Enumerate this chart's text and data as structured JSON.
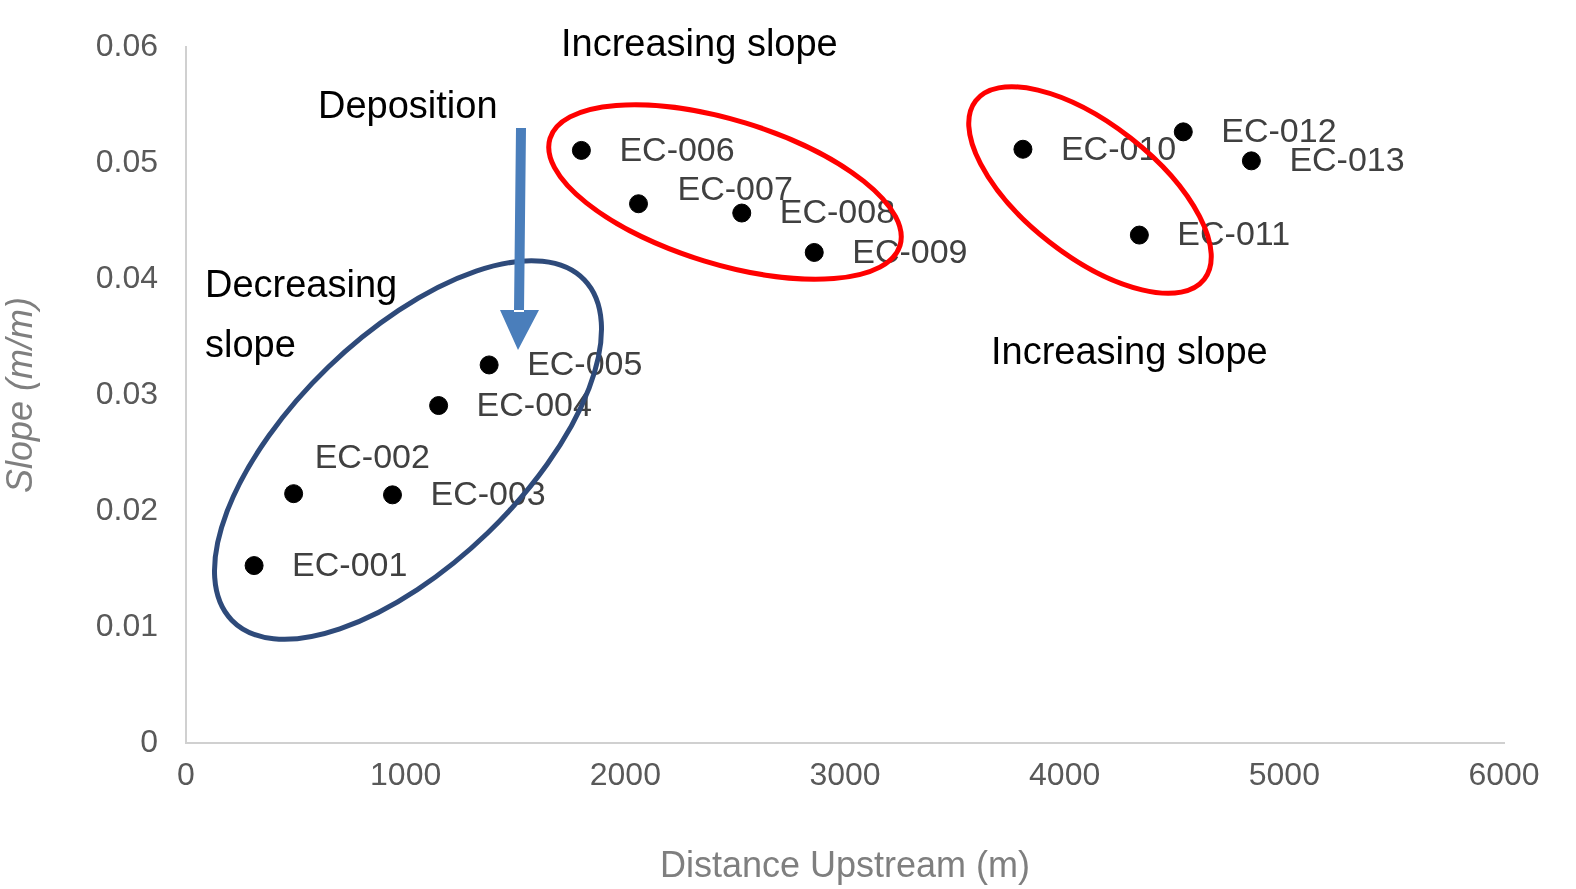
{
  "chart_data": {
    "type": "scatter",
    "xlabel": "Distance Upstream (m)",
    "ylabel": "Slope (m/m)",
    "x": [
      310,
      490,
      940,
      1150,
      1380,
      1800,
      2060,
      2530,
      2860,
      3810,
      4340,
      4540,
      4850
    ],
    "series": [
      {
        "color": "#000000",
        "values": [
          0.0153,
          0.0215,
          0.0214,
          0.0291,
          0.0326,
          0.0511,
          0.0465,
          0.0457,
          0.0423,
          0.0512,
          0.0438,
          0.0527,
          0.0502
        ]
      }
    ],
    "xlim": [
      0,
      6000
    ],
    "xticks": [
      0,
      1000,
      2000,
      3000,
      4000,
      5000,
      6000
    ],
    "ylim": [
      0,
      0.06
    ],
    "yticks": [
      0,
      0.01,
      0.02,
      0.03,
      0.04,
      0.05,
      0.06
    ],
    "grid": false,
    "legend": false,
    "marker": "circle",
    "annotations": [
      {
        "text": "EC-001",
        "x": 310,
        "y": 0.0153
      },
      {
        "text": "EC-002",
        "x": 490,
        "y": 0.0215
      },
      {
        "text": "EC-003",
        "x": 940,
        "y": 0.0214
      },
      {
        "text": "EC-004",
        "x": 1150,
        "y": 0.0291
      },
      {
        "text": "EC-005",
        "x": 1380,
        "y": 0.0326
      },
      {
        "text": "EC-006",
        "x": 1800,
        "y": 0.0511
      },
      {
        "text": "EC-007",
        "x": 2060,
        "y": 0.0465
      },
      {
        "text": "EC-008",
        "x": 2530,
        "y": 0.0457
      },
      {
        "text": "EC-009",
        "x": 2860,
        "y": 0.0423
      },
      {
        "text": "EC-010",
        "x": 3810,
        "y": 0.0512
      },
      {
        "text": "EC-011",
        "x": 4340,
        "y": 0.0438
      },
      {
        "text": "EC-012",
        "x": 4540,
        "y": 0.0527
      },
      {
        "text": "EC-013",
        "x": 4850,
        "y": 0.0502
      },
      "Increasing slope",
      "Deposition",
      "Decreasing slope",
      "Increasing slope"
    ]
  }
}
